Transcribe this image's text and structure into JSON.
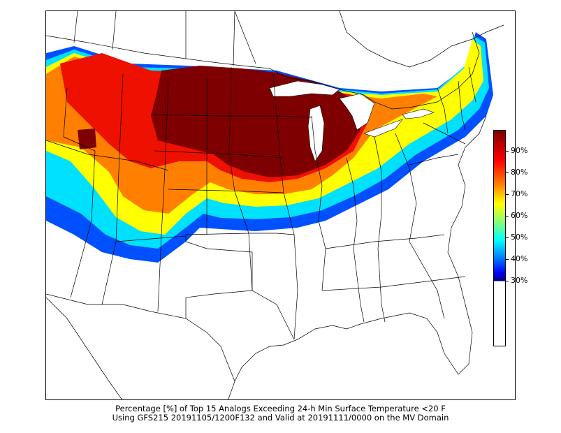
{
  "caption": {
    "line1": "Percentage [%] of Top 15 Analogs Exceeding 24-h Min Surface Temperature <20 F",
    "line2": "Using GFS215 20191105/1200F132 and Valid at 20191111/0000 on the MV Domain"
  },
  "colorbar": {
    "labels": [
      "90%",
      "80%",
      "70%",
      "60%",
      "50%",
      "40%",
      "30%"
    ],
    "min_value": 30,
    "max_value": 100,
    "colors": {
      "below_threshold": "#ffffff",
      "low": "#00007f",
      "blue": "#0000ff",
      "azure": "#007fff",
      "cyan": "#00ffff",
      "green": "#7fff7f",
      "yellow": "#ffff00",
      "orange": "#ff7f00",
      "red": "#ff0000",
      "high": "#7f0000"
    }
  },
  "map": {
    "colors": {
      "land": "#ffffff",
      "borders": "#000000"
    }
  }
}
